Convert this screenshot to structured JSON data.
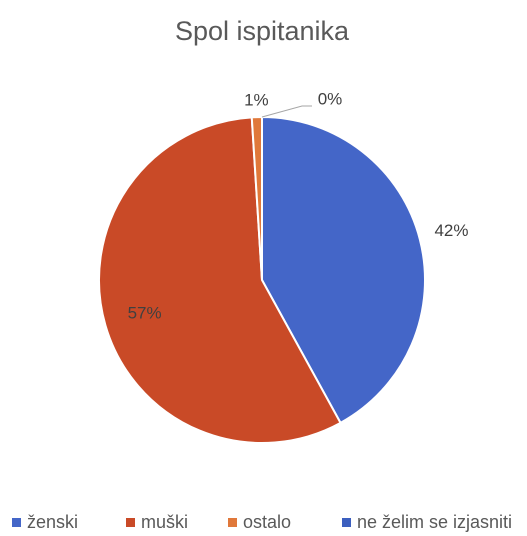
{
  "chart_data": {
    "type": "pie",
    "title": "Spol ispitanika",
    "categories": [
      "ženski",
      "muški",
      "ostalo",
      "ne želim se izjasniti"
    ],
    "values": [
      42,
      57,
      1,
      0
    ],
    "value_labels": [
      "42%",
      "57%",
      "1%",
      "0%"
    ],
    "colors": [
      "#4466c8",
      "#c94a27",
      "#e0783a",
      "#3c5fbf"
    ],
    "legend": "bottom"
  }
}
